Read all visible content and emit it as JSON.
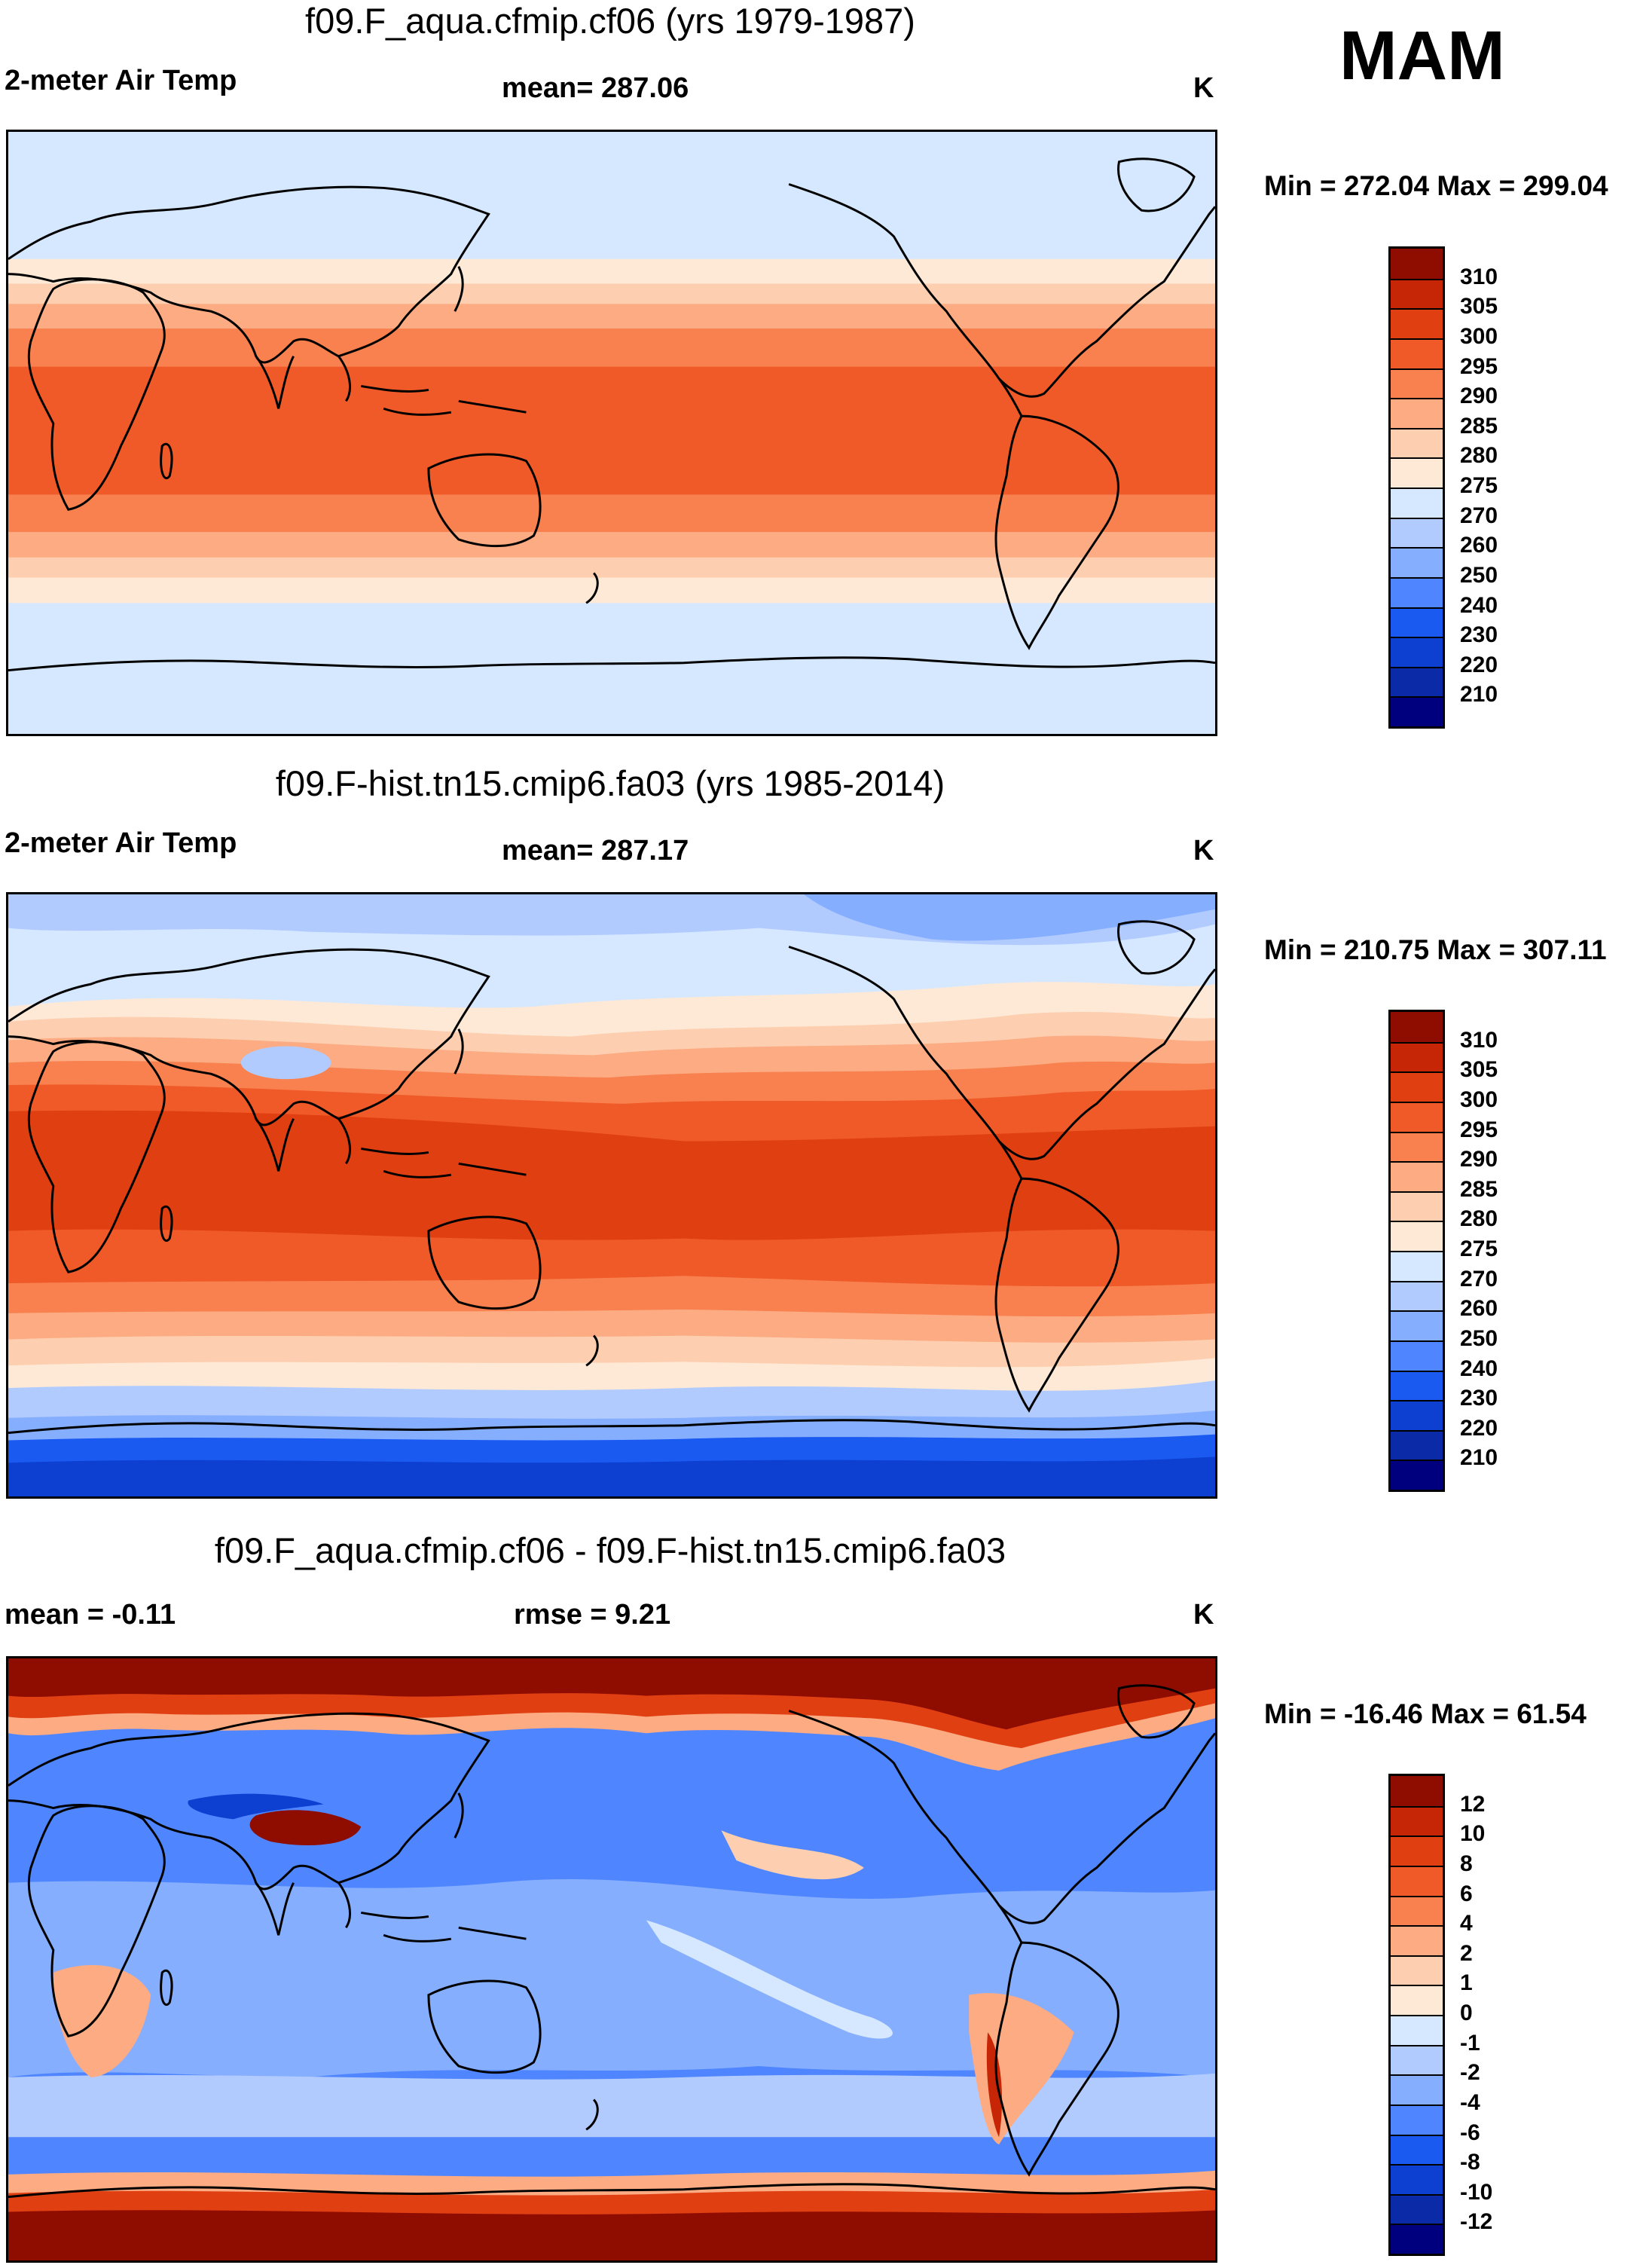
{
  "season": "MAM",
  "colors": {
    "land_outline": "#000000",
    "abs_scale": [
      "#00007f",
      "#0a2aa8",
      "#0d3fd1",
      "#1a5af0",
      "#4f86ff",
      "#86aeff",
      "#b2cbff",
      "#d6e8ff",
      "#fde9d6",
      "#fdcfb0",
      "#fcab82",
      "#f8814f",
      "#ef5a28",
      "#e03f12",
      "#c62506",
      "#8e0c00"
    ],
    "diff_scale": [
      "#00007f",
      "#0a2aa8",
      "#0d3fd1",
      "#1a5af0",
      "#4f86ff",
      "#86aeff",
      "#b2cbff",
      "#d6e8ff",
      "#fde9d6",
      "#fdcfb0",
      "#fcab82",
      "#f8814f",
      "#ef5a28",
      "#e03f12",
      "#c62506",
      "#8e0c00"
    ]
  },
  "panels": [
    {
      "title": "f09.F_aqua.cfmip.cf06 (yrs 1979-1987)",
      "left_label": "2-meter Air Temp",
      "center_label": "mean= 287.06",
      "units": "K",
      "minmax": "Min = 272.04 Max = 299.04",
      "ticks": [
        "310",
        "305",
        "300",
        "295",
        "290",
        "285",
        "280",
        "275",
        "270",
        "260",
        "250",
        "240",
        "230",
        "220",
        "210"
      ]
    },
    {
      "title": "f09.F-hist.tn15.cmip6.fa03 (yrs 1985-2014)",
      "left_label": "2-meter Air Temp",
      "center_label": "mean= 287.17",
      "units": "K",
      "minmax": "Min = 210.75 Max = 307.11",
      "ticks": [
        "310",
        "305",
        "300",
        "295",
        "290",
        "285",
        "280",
        "275",
        "270",
        "260",
        "250",
        "240",
        "230",
        "220",
        "210"
      ]
    },
    {
      "title": "f09.F_aqua.cfmip.cf06 - f09.F-hist.tn15.cmip6.fa03",
      "left_label": "mean =  -0.11",
      "center_label": "rmse =   9.21",
      "units": "K",
      "minmax": "Min = -16.46 Max =  61.54",
      "ticks": [
        "12",
        "10",
        "8",
        "6",
        "4",
        "2",
        "1",
        "0",
        "-1",
        "-2",
        "-4",
        "-6",
        "-8",
        "-10",
        "-12"
      ]
    }
  ],
  "chart_data": [
    {
      "type": "heatmap",
      "title": "f09.F_aqua.cfmip.cf06 (yrs 1979-1987)",
      "variable": "2-meter Air Temp",
      "units": "K",
      "mean": 287.06,
      "min": 272.04,
      "max": 299.04,
      "contour_levels": [
        210,
        220,
        230,
        240,
        250,
        260,
        270,
        275,
        280,
        285,
        290,
        295,
        300,
        305,
        310
      ],
      "zonal_bands_lat_to_K": [
        [
          90,
          271
        ],
        [
          60,
          271
        ],
        [
          45,
          276
        ],
        [
          40,
          281
        ],
        [
          35,
          286
        ],
        [
          25,
          292
        ],
        [
          15,
          297
        ],
        [
          0,
          298
        ],
        [
          -15,
          297
        ],
        [
          -25,
          292
        ],
        [
          -35,
          286
        ],
        [
          -40,
          281
        ],
        [
          -45,
          276
        ],
        [
          -60,
          271
        ],
        [
          -90,
          271
        ]
      ]
    },
    {
      "type": "heatmap",
      "title": "f09.F-hist.tn15.cmip6.fa03 (yrs 1985-2014)",
      "variable": "2-meter Air Temp",
      "units": "K",
      "mean": 287.17,
      "min": 210.75,
      "max": 307.11,
      "contour_levels": [
        210,
        220,
        230,
        240,
        250,
        260,
        270,
        275,
        280,
        285,
        290,
        295,
        300,
        305,
        310
      ]
    },
    {
      "type": "heatmap",
      "title": "f09.F_aqua.cfmip.cf06 - f09.F-hist.tn15.cmip6.fa03",
      "units": "K",
      "mean": -0.11,
      "rmse": 9.21,
      "min": -16.46,
      "max": 61.54,
      "contour_levels": [
        -12,
        -10,
        -8,
        -6,
        -4,
        -2,
        -1,
        0,
        1,
        2,
        4,
        6,
        8,
        10,
        12
      ]
    }
  ]
}
